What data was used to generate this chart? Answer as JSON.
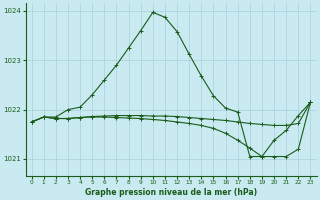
{
  "title": "Graphe pression niveau de la mer (hPa)",
  "bg_color": "#c8eaf0",
  "grid_color": "#a8d0dc",
  "line_color": "#1a5c1a",
  "xlim": [
    -0.5,
    23.5
  ],
  "ylim": [
    1020.65,
    1024.15
  ],
  "yticks": [
    1021,
    1022,
    1023,
    1024
  ],
  "xticks": [
    0,
    1,
    2,
    3,
    4,
    5,
    6,
    7,
    8,
    9,
    10,
    11,
    12,
    13,
    14,
    15,
    16,
    17,
    18,
    19,
    20,
    21,
    22,
    23
  ],
  "lines": [
    {
      "x": [
        0,
        1,
        2,
        3,
        4,
        5,
        6,
        7,
        8,
        9,
        10,
        11,
        12,
        13,
        14,
        15,
        16,
        17,
        18,
        19,
        20,
        21,
        22,
        23
      ],
      "y": [
        1021.75,
        1021.85,
        1021.85,
        1022.0,
        1022.05,
        1022.3,
        1022.6,
        1022.9,
        1023.25,
        1023.6,
        1023.97,
        1023.87,
        1023.58,
        1023.12,
        1022.68,
        1022.28,
        1022.03,
        1021.95,
        1021.05,
        1021.05,
        1021.38,
        1021.58,
        1021.88,
        1022.15
      ]
    },
    {
      "x": [
        0,
        1,
        2,
        3,
        4,
        5,
        6,
        7,
        8,
        9,
        10,
        11,
        12,
        13,
        14,
        15,
        16,
        17,
        18,
        19,
        20,
        21,
        22,
        23
      ],
      "y": [
        1021.75,
        1021.85,
        1021.82,
        1021.82,
        1021.84,
        1021.86,
        1021.87,
        1021.88,
        1021.88,
        1021.88,
        1021.87,
        1021.87,
        1021.86,
        1021.84,
        1021.82,
        1021.8,
        1021.78,
        1021.75,
        1021.72,
        1021.7,
        1021.68,
        1021.68,
        1021.72,
        1022.15
      ]
    },
    {
      "x": [
        0,
        1,
        2,
        3,
        4,
        5,
        6,
        7,
        8,
        9,
        10,
        11,
        12,
        13,
        14,
        15,
        16,
        17,
        18,
        19,
        20,
        21,
        22,
        23
      ],
      "y": [
        1021.75,
        1021.85,
        1021.82,
        1021.82,
        1021.84,
        1021.85,
        1021.85,
        1021.84,
        1021.83,
        1021.82,
        1021.8,
        1021.78,
        1021.75,
        1021.72,
        1021.68,
        1021.62,
        1021.52,
        1021.38,
        1021.22,
        1021.05,
        1021.05,
        1021.05,
        1021.2,
        1022.15
      ]
    }
  ]
}
